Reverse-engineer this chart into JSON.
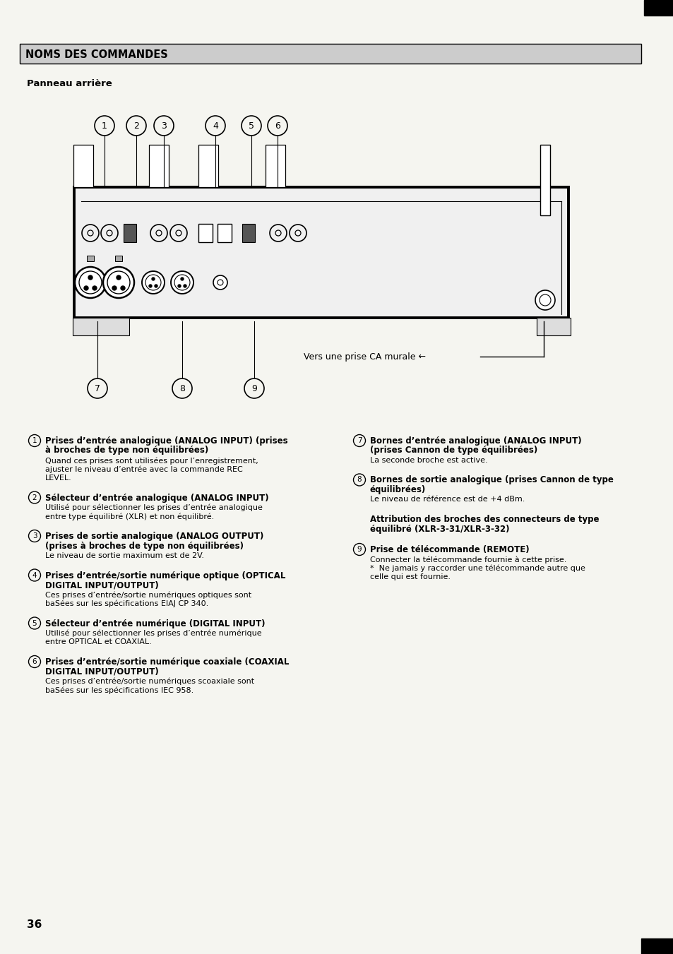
{
  "title": "NOMS DES COMMANDES",
  "subtitle": "Panneau arrière",
  "bg_color": "#f5f5f0",
  "text_color": "#000000",
  "header_bg": "#c8c8c8",
  "items_left": [
    {
      "num": "1",
      "bold": "Prises d’entrée analogique (ANALOG INPUT) (prises\nà broches de type non équilibrées)",
      "normal": "Quand ces prises sont utilisées pour l’enregistrement,\najuster le niveau d’entrée avec la commande REC\nLEVEL."
    },
    {
      "num": "2",
      "bold": "Sélecteur d’entrée analogique (ANALOG INPUT)",
      "normal": "Utilisé pour sélectionner les prises d’entrée analogique\nentre type équilibré (XLR) et non équilibré."
    },
    {
      "num": "3",
      "bold": "Prises de sortie analogique (ANALOG OUTPUT)\n(prises à broches de type non équilibrées)",
      "normal": "Le niveau de sortie maximum est de 2V."
    },
    {
      "num": "4",
      "bold": "Prises d’entrée/sortie numérique optique (OPTICAL\nDIGITAL INPUT/OUTPUT)",
      "normal": "Ces prises d’entrée/sortie numériques optiques sont\nbaSées sur les spécifications EIAJ CP 340."
    },
    {
      "num": "5",
      "bold": "Sélecteur d’entrée numérique (DIGITAL INPUT)",
      "normal": "Utilisé pour sélectionner les prises d’entrée numérique\nentre OPTICAL et COAXIAL."
    },
    {
      "num": "6",
      "bold": "Prises d’entrée/sortie numérique coaxiale (COAXIAL\nDIGITAL INPUT/OUTPUT)",
      "normal": "Ces prises d’entrée/sortie numériques scoaxiale sont\nbaSées sur les spécifications IEC 958."
    }
  ],
  "items_right": [
    {
      "num": "7",
      "bold": "Bornes d’entrée analogique (ANALOG INPUT)\n(prises Cannon de type équilibrées)",
      "normal": "La seconde broche est active."
    },
    {
      "num": "8",
      "bold": "Bornes de sortie analogique (prises Cannon de type\néquilibrées)",
      "normal": "Le niveau de référence est de +4 dBm."
    },
    {
      "num": "",
      "bold": "Attribution des broches des connecteurs de type\néquilibré (XLR-3-31/XLR-3-32)",
      "normal": ""
    },
    {
      "num": "9",
      "bold": "Prise de télécommande (REMOTE)",
      "normal": "Connecter la télécommande fournie à cette prise.\n*  Ne jamais y raccorder une télécommande autre que\ncelle qui est fournie."
    }
  ],
  "page_number": "36",
  "diagram_arrow_label": "Vers une prise CA murale"
}
